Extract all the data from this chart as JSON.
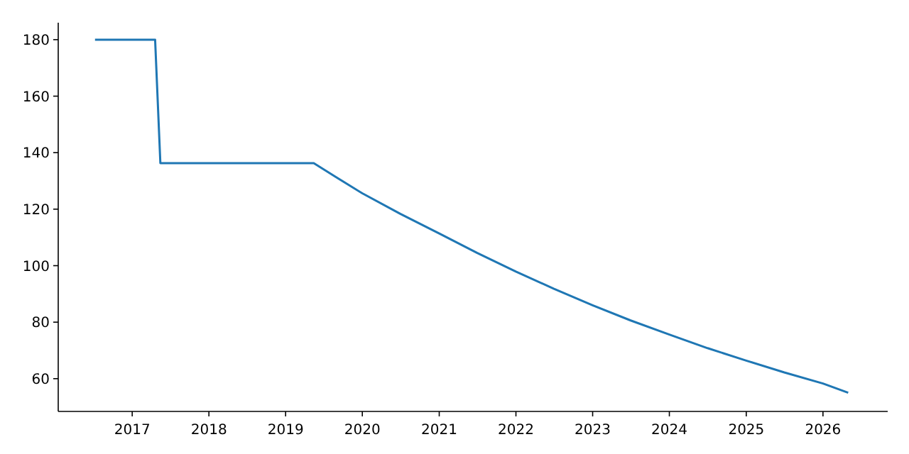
{
  "chart_data": {
    "type": "line",
    "x": [
      "2016-07-08",
      "2017-04-20",
      "2017-05-15",
      "2019-05-15",
      "2019-09-01",
      "2020-01-01",
      "2020-07-01",
      "2021-01-01",
      "2021-07-01",
      "2022-01-01",
      "2022-07-01",
      "2023-01-01",
      "2023-07-01",
      "2024-01-01",
      "2024-07-01",
      "2025-01-01",
      "2025-07-01",
      "2026-01-01",
      "2026-05-01"
    ],
    "series": [
      {
        "color": "#1f77b4",
        "values": [
          180,
          180,
          136.3,
          136.3,
          131.2,
          125.6,
          118.3,
          111.4,
          104.5,
          97.9,
          91.8,
          86,
          80.6,
          75.6,
          70.8,
          66.4,
          62.2,
          58.3,
          55
        ]
      }
    ],
    "xlim": [
      "2016-01-15",
      "2026-11-05"
    ],
    "xticks": [
      "2017",
      "2018",
      "2019",
      "2020",
      "2021",
      "2022",
      "2023",
      "2024",
      "2025",
      "2026"
    ],
    "ylim": [
      48.4,
      186
    ],
    "yticks": [
      60,
      80,
      100,
      120,
      140,
      160,
      180
    ],
    "grid": false,
    "marker": "none",
    "line_style": "solid"
  }
}
